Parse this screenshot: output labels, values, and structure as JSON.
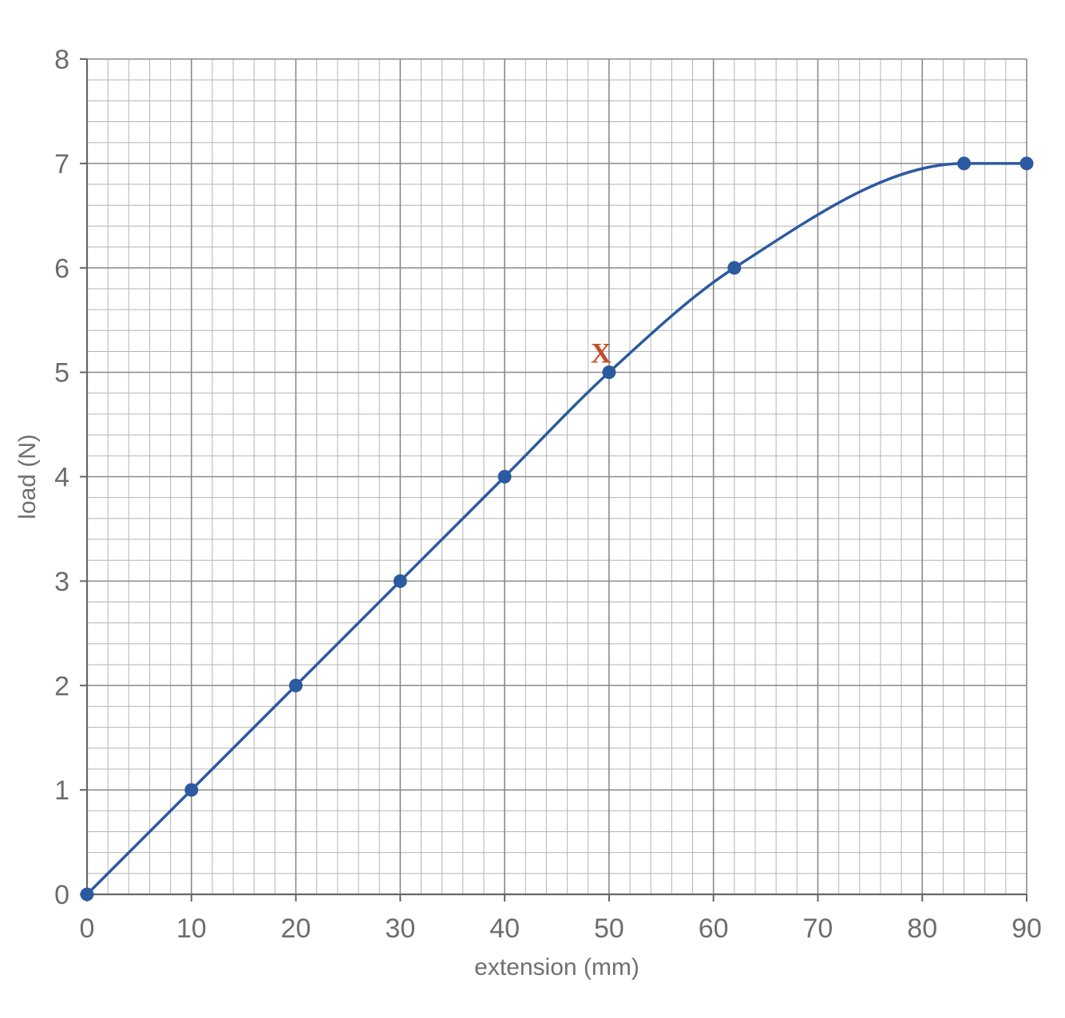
{
  "chart_data": {
    "type": "line",
    "xlabel": "extension (mm)",
    "ylabel": "load (N)",
    "xlim": [
      0,
      90
    ],
    "ylim": [
      0,
      8
    ],
    "grid": true,
    "x_ticks": [
      0,
      10,
      20,
      30,
      40,
      50,
      60,
      70,
      80,
      90
    ],
    "y_ticks": [
      0,
      1,
      2,
      3,
      4,
      5,
      6,
      7,
      8
    ],
    "series": [
      {
        "x": [
          0,
          10,
          20,
          30,
          40,
          50,
          62,
          84,
          90
        ],
        "y": [
          0,
          1,
          2,
          3,
          4,
          5,
          6,
          7,
          7
        ],
        "color": "#2c5aa0"
      }
    ],
    "annotations": [
      {
        "text": "X",
        "x": 50,
        "y": 5,
        "color": "#c0502a"
      }
    ]
  }
}
